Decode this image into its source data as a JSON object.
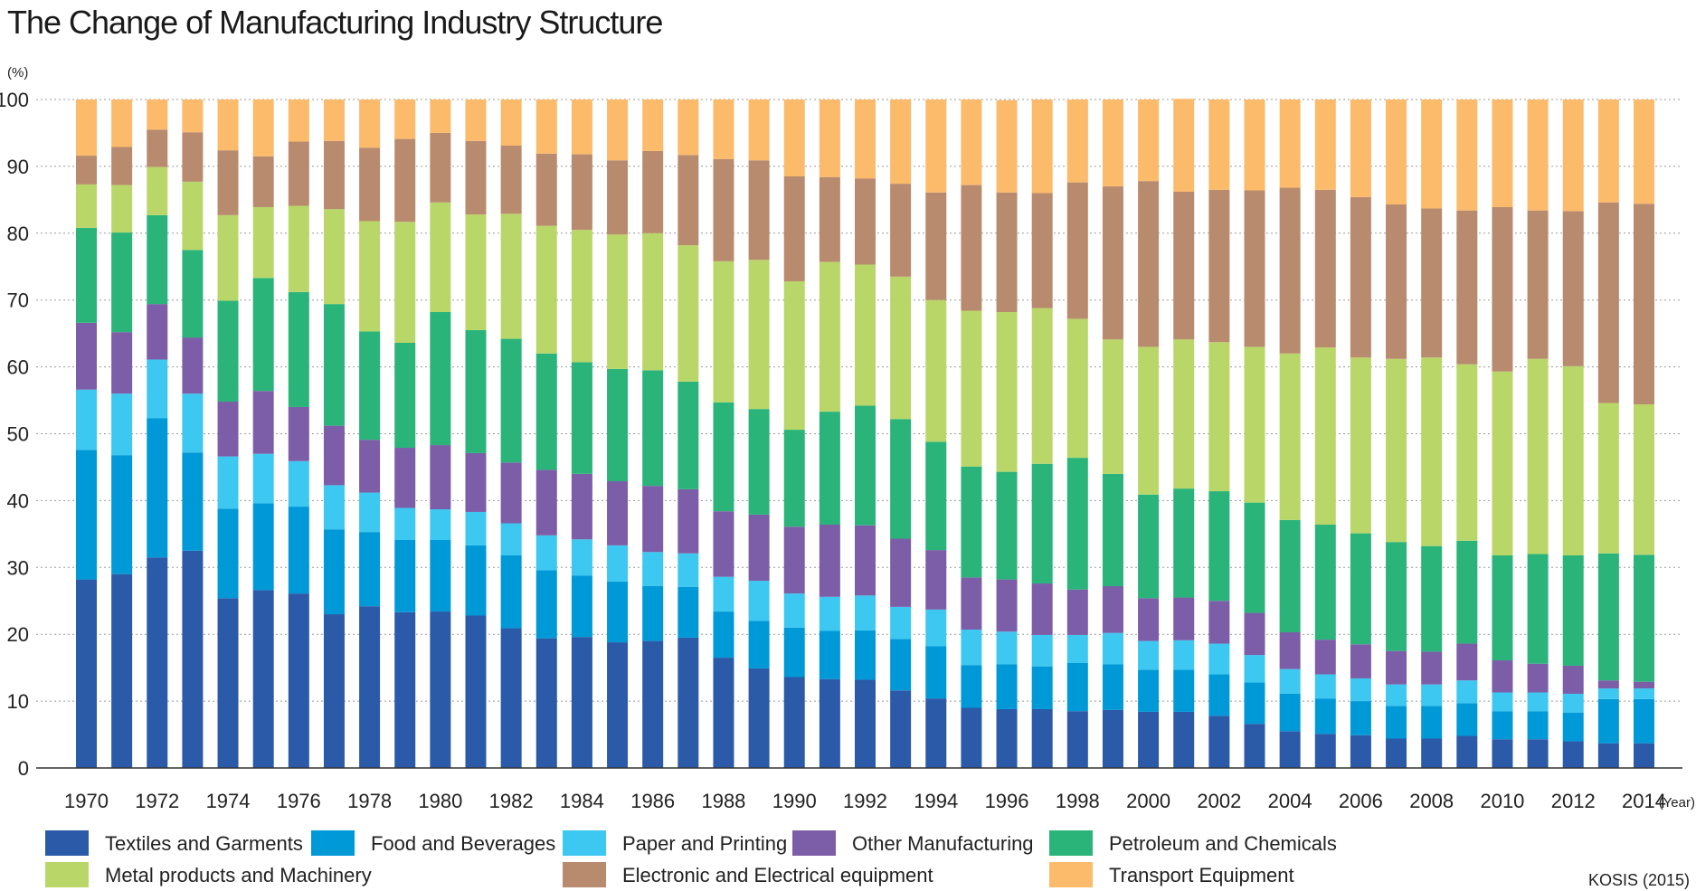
{
  "chart_data": {
    "type": "bar",
    "stacked": true,
    "title": "The Change of Manufacturing Industry Structure",
    "ylabel": "(%)",
    "xlabel": "(Year)",
    "ylim": [
      0,
      100
    ],
    "yticks": [
      0,
      10,
      20,
      30,
      40,
      50,
      60,
      70,
      80,
      90,
      100
    ],
    "grid": true,
    "legend_position": "bottom",
    "source": "KOSIS (2015)",
    "categories": [
      "1970",
      "1971",
      "1972",
      "1973",
      "1974",
      "1975",
      "1976",
      "1977",
      "1978",
      "1979",
      "1980",
      "1981",
      "1982",
      "1983",
      "1984",
      "1985",
      "1986",
      "1987",
      "1988",
      "1989",
      "1990",
      "1991",
      "1992",
      "1993",
      "1994",
      "1995",
      "1996",
      "1997",
      "1998",
      "1999",
      "2000",
      "2001",
      "2002",
      "2003",
      "2004",
      "2005",
      "2006",
      "2007",
      "2008",
      "2009",
      "2010",
      "2011",
      "2012",
      "2013",
      "2014"
    ],
    "x_tick_labels": [
      "1970",
      "1972",
      "1974",
      "1976",
      "1978",
      "1980",
      "1982",
      "1984",
      "1986",
      "1988",
      "1990",
      "1992",
      "1994",
      "1996",
      "1998",
      "2000",
      "2002",
      "2004",
      "2006",
      "2008",
      "2010",
      "2012",
      "2014"
    ],
    "series": [
      {
        "name": "Textiles and Garments",
        "color": "#2b5aa8",
        "values": [
          28.2,
          29.0,
          31.5,
          32.5,
          25.4,
          26.6,
          26.1,
          23.0,
          24.2,
          23.3,
          23.4,
          22.8,
          20.9,
          19.4,
          19.6,
          18.8,
          19.0,
          19.5,
          16.5,
          14.9,
          13.6,
          13.3,
          13.2,
          11.6,
          10.4,
          9.0,
          8.8,
          8.8,
          8.5,
          8.7,
          8.4,
          8.4,
          7.8,
          6.6,
          5.5,
          5.1,
          4.9,
          4.4,
          4.4,
          4.8,
          4.3,
          4.3,
          4.0,
          3.7,
          3.7
        ]
      },
      {
        "name": "Food and Beverages",
        "color": "#0099d8",
        "values": [
          19.4,
          17.8,
          20.8,
          14.7,
          13.4,
          13.0,
          13.0,
          12.7,
          11.1,
          10.8,
          10.7,
          10.5,
          10.9,
          10.2,
          9.2,
          9.1,
          8.2,
          7.6,
          6.9,
          7.1,
          7.4,
          7.2,
          7.4,
          7.7,
          7.8,
          6.4,
          6.7,
          6.4,
          7.2,
          6.8,
          6.3,
          6.3,
          6.2,
          6.2,
          5.6,
          5.3,
          5.1,
          4.9,
          4.9,
          4.9,
          4.2,
          4.2,
          4.3,
          6.6,
          6.6
        ]
      },
      {
        "name": "Paper and Printing",
        "color": "#3cc8f0",
        "values": [
          9.0,
          9.2,
          8.8,
          8.8,
          7.8,
          7.4,
          6.8,
          6.6,
          5.9,
          4.8,
          4.6,
          5.0,
          4.8,
          5.2,
          5.4,
          5.4,
          5.1,
          5.0,
          5.2,
          6.0,
          5.1,
          5.1,
          5.2,
          4.8,
          5.5,
          5.3,
          4.9,
          4.7,
          4.2,
          4.7,
          4.3,
          4.4,
          4.6,
          4.1,
          3.7,
          3.6,
          3.4,
          3.2,
          3.2,
          3.4,
          2.8,
          2.8,
          2.8,
          1.6,
          1.6
        ]
      },
      {
        "name": "Other Manufacturing",
        "color": "#7b5ea7",
        "values": [
          10.0,
          9.2,
          8.3,
          8.4,
          8.2,
          9.4,
          8.1,
          8.9,
          7.9,
          9.0,
          9.6,
          8.8,
          9.1,
          9.8,
          9.8,
          9.6,
          9.9,
          9.6,
          9.8,
          9.9,
          10.0,
          10.8,
          10.5,
          10.2,
          8.9,
          7.8,
          7.8,
          7.7,
          6.8,
          7.0,
          6.4,
          6.4,
          6.4,
          6.3,
          5.5,
          5.2,
          5.1,
          5.0,
          4.9,
          5.5,
          4.8,
          4.3,
          4.2,
          1.2,
          1.0
        ]
      },
      {
        "name": "Petroleum and Chemicals",
        "color": "#2ab47a",
        "values": [
          14.2,
          14.9,
          13.3,
          13.1,
          15.1,
          16.9,
          17.2,
          18.2,
          16.2,
          15.7,
          19.9,
          18.4,
          18.5,
          17.4,
          16.7,
          16.8,
          17.3,
          16.1,
          16.3,
          15.8,
          14.5,
          16.9,
          17.9,
          17.9,
          16.2,
          16.6,
          16.1,
          17.9,
          19.7,
          16.8,
          15.5,
          16.3,
          16.4,
          16.5,
          16.8,
          17.2,
          16.6,
          16.3,
          15.8,
          15.4,
          15.7,
          16.4,
          16.5,
          19.0,
          19.0
        ]
      },
      {
        "name": "Metal products and Machinery",
        "color": "#b9d768",
        "values": [
          6.5,
          7.1,
          7.2,
          10.2,
          12.8,
          10.6,
          12.9,
          14.2,
          16.5,
          18.1,
          16.4,
          17.3,
          18.7,
          19.1,
          19.8,
          20.1,
          20.5,
          20.4,
          21.1,
          22.3,
          22.2,
          22.4,
          21.1,
          21.3,
          21.2,
          23.3,
          23.9,
          23.3,
          20.8,
          20.1,
          22.1,
          22.3,
          22.3,
          23.3,
          24.9,
          26.5,
          26.3,
          27.4,
          28.2,
          26.4,
          27.5,
          29.2,
          28.3,
          22.5,
          22.5
        ]
      },
      {
        "name": "Electronic and Electrical equipment",
        "color": "#b98b6e",
        "values": [
          4.3,
          5.7,
          5.6,
          7.4,
          9.7,
          7.6,
          9.6,
          10.2,
          11.0,
          12.4,
          10.4,
          11.0,
          10.2,
          10.8,
          11.3,
          11.1,
          12.3,
          13.5,
          15.3,
          14.9,
          15.7,
          12.7,
          12.9,
          13.9,
          16.1,
          18.8,
          17.9,
          17.2,
          20.4,
          22.9,
          24.8,
          22.1,
          22.8,
          23.4,
          24.8,
          23.6,
          24.0,
          23.1,
          22.3,
          23.0,
          24.6,
          22.2,
          23.2,
          30.0,
          30.0
        ]
      },
      {
        "name": "Transport Equipment",
        "color": "#fcba6b",
        "values": [
          8.4,
          7.1,
          4.5,
          4.9,
          7.6,
          8.5,
          6.3,
          6.2,
          7.2,
          5.9,
          5.0,
          6.2,
          6.9,
          8.1,
          8.2,
          9.1,
          7.7,
          8.3,
          8.9,
          9.1,
          11.5,
          11.6,
          11.8,
          12.6,
          13.9,
          12.8,
          13.8,
          14.0,
          12.4,
          13.0,
          12.2,
          13.9,
          13.5,
          13.6,
          13.2,
          13.5,
          14.6,
          15.7,
          16.3,
          16.6,
          16.1,
          16.6,
          16.7,
          15.4,
          15.6
        ]
      }
    ]
  }
}
